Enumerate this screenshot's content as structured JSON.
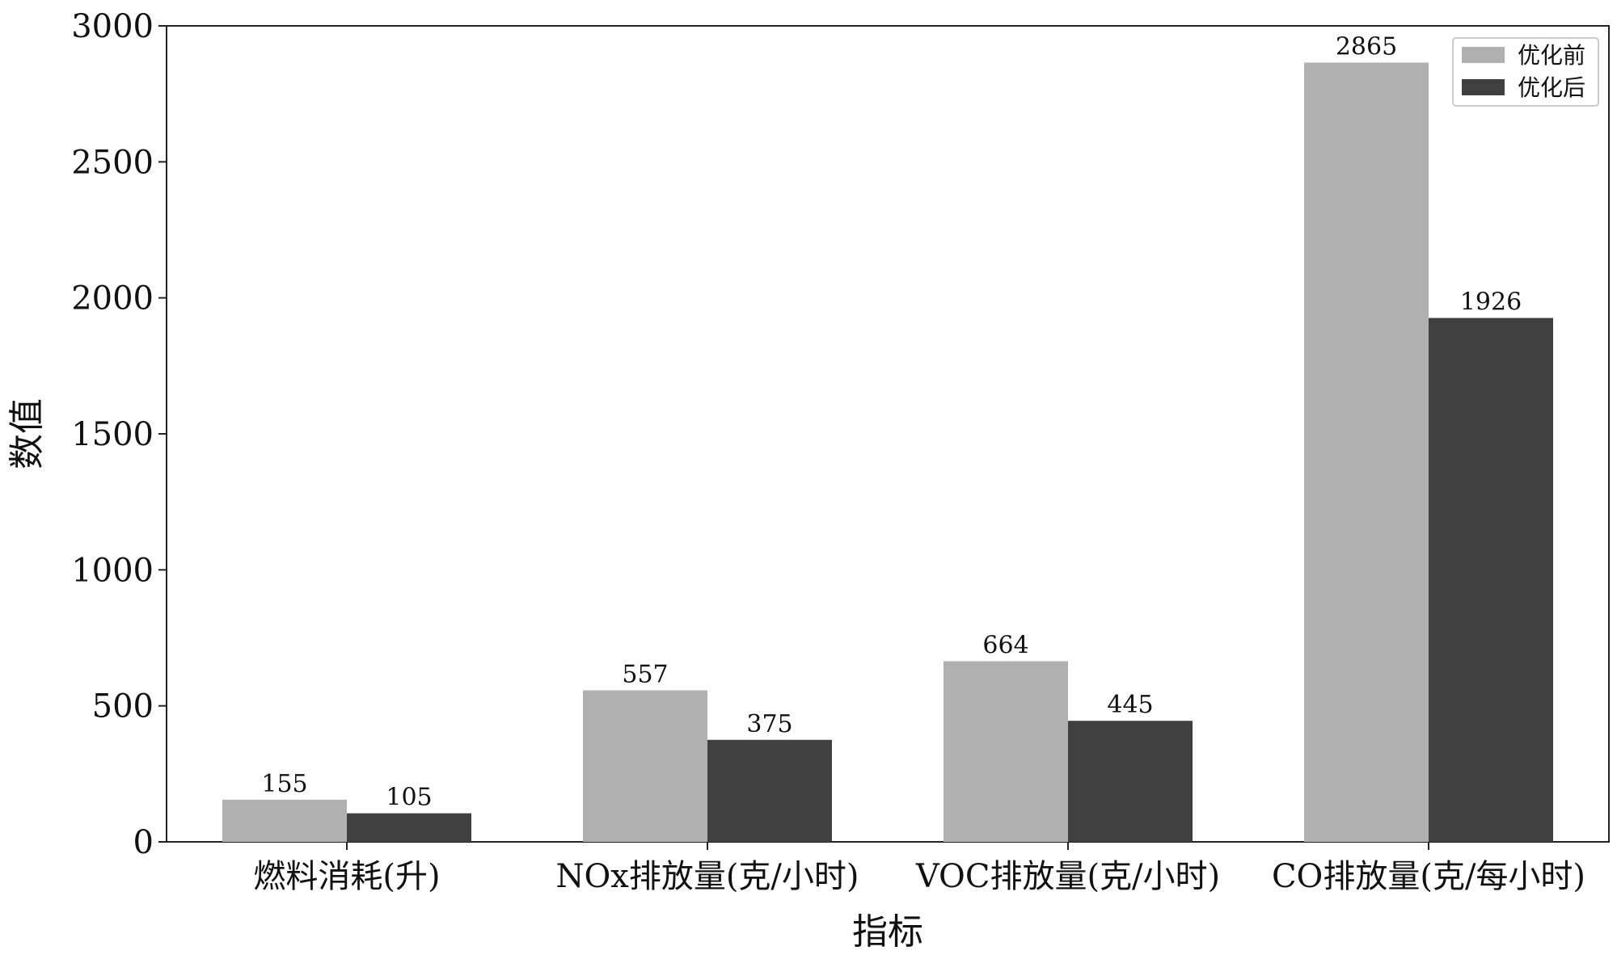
{
  "chart_data": {
    "type": "bar",
    "categories": [
      "燃料消耗(升)",
      "NOx排放量(克/小时)",
      "VOC排放量(克/小时)",
      "CO排放量(克/每小时)"
    ],
    "series": [
      {
        "name": "优化前",
        "values": [
          155,
          557,
          664,
          2865
        ],
        "color": "#b0b0b0"
      },
      {
        "name": "优化后",
        "values": [
          105,
          375,
          445,
          1926
        ],
        "color": "#404040"
      }
    ],
    "xlabel": "指标",
    "ylabel": "数值",
    "ylim": [
      0,
      3000
    ],
    "yticks": [
      0,
      500,
      1000,
      1500,
      2000,
      2500,
      3000
    ],
    "grid": false,
    "legend_position": "top-right"
  }
}
